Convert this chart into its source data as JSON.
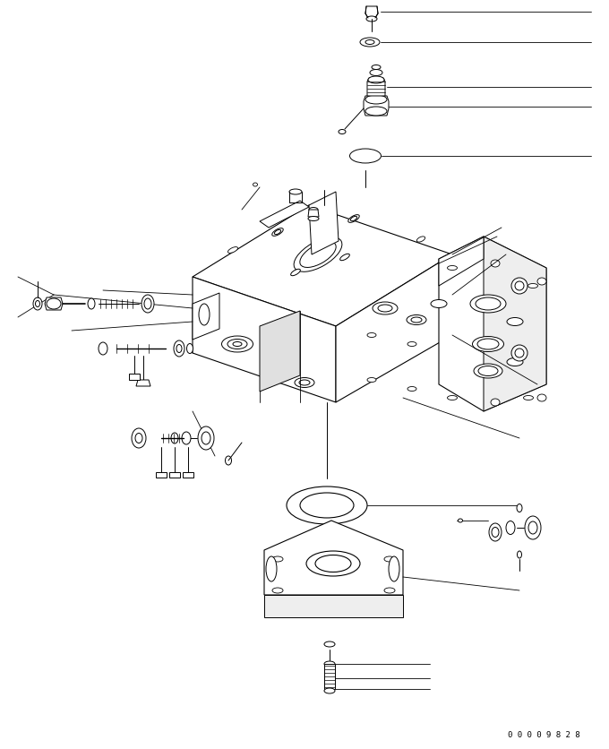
{
  "background_color": "#ffffff",
  "line_color": "#000000",
  "part_number_text": "0 0 0 0 9 8 2 8",
  "fig_width": 6.8,
  "fig_height": 8.37,
  "dpi": 100
}
